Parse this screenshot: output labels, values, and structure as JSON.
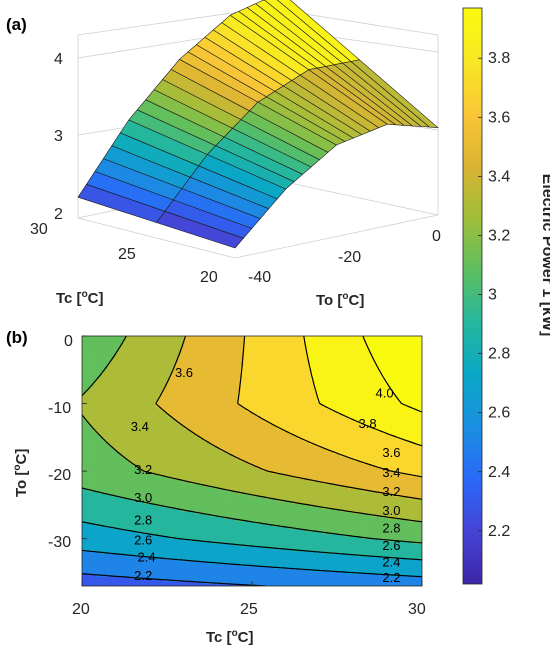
{
  "chart_data": [
    {
      "panel": "(a)",
      "type": "surface",
      "xlabel": "Tc [",
      "xlabel_unit": "C]",
      "ylabel": "To [",
      "ylabel_unit": "C]",
      "degree_symbol": "o",
      "xlim": [
        20,
        30
      ],
      "ylim": [
        -40,
        0
      ],
      "zlim": [
        2,
        4.2
      ],
      "x_ticks": [
        20,
        25,
        30
      ],
      "y_ticks": [
        -40,
        -20,
        0
      ],
      "z_ticks": [
        2,
        3,
        4
      ],
      "grid": true,
      "colormap": "parula",
      "surface_values": {
        "Tc": [
          20,
          30
        ],
        "To": [
          -40,
          -30,
          -20,
          -10,
          0
        ],
        "z_at_Tc20": [
          2.12,
          2.7,
          3.1,
          3.22,
          3.05
        ],
        "z_at_Tc30": [
          2.25,
          3.05,
          3.65,
          4.05,
          4.2
        ]
      }
    },
    {
      "panel": "(b)",
      "type": "contour",
      "xlabel": "Tc [",
      "xlabel_unit": "C]",
      "ylabel": "To [",
      "ylabel_unit": "C]",
      "degree_symbol": "o",
      "xlim": [
        20,
        30
      ],
      "ylim": [
        -37,
        0
      ],
      "x_ticks": [
        20,
        25,
        30
      ],
      "y_ticks": [
        0,
        -10,
        -20,
        -30
      ],
      "levels": [
        2.2,
        2.4,
        2.6,
        2.8,
        3.0,
        3.2,
        3.4,
        3.6,
        3.8,
        4.0
      ],
      "contour_labels": [
        {
          "text": "2.2",
          "tc": 21.8,
          "to": -35.5
        },
        {
          "text": "2.2",
          "tc": 29.1,
          "to": -35.8
        },
        {
          "text": "2.4",
          "tc": 21.9,
          "to": -32.8
        },
        {
          "text": "2.4",
          "tc": 29.1,
          "to": -33.5
        },
        {
          "text": "2.6",
          "tc": 21.8,
          "to": -30.3
        },
        {
          "text": "2.6",
          "tc": 29.1,
          "to": -31.1
        },
        {
          "text": "2.8",
          "tc": 21.8,
          "to": -27.3
        },
        {
          "text": "2.8",
          "tc": 29.1,
          "to": -28.5
        },
        {
          "text": "3.0",
          "tc": 21.8,
          "to": -24.0
        },
        {
          "text": "3.0",
          "tc": 29.1,
          "to": -25.9
        },
        {
          "text": "3.2",
          "tc": 21.8,
          "to": -19.8
        },
        {
          "text": "3.2",
          "tc": 29.1,
          "to": -23.1
        },
        {
          "text": "3.4",
          "tc": 21.7,
          "to": -13.5
        },
        {
          "text": "3.4",
          "tc": 29.1,
          "to": -20.3
        },
        {
          "text": "3.6",
          "tc": 23.0,
          "to": -5.5
        },
        {
          "text": "3.6",
          "tc": 29.1,
          "to": -17.3
        },
        {
          "text": "3.8",
          "tc": 28.4,
          "to": -13.0
        },
        {
          "text": "4.0",
          "tc": 28.9,
          "to": -8.5
        }
      ]
    },
    {
      "type": "colorbar",
      "label": "Electric Power 1 [kW]",
      "ticks": [
        "2.2",
        "2.4",
        "2.6",
        "2.8",
        "3",
        "3.2",
        "3.4",
        "3.6",
        "3.8"
      ],
      "range": [
        2.02,
        3.97
      ],
      "colormap": "parula"
    }
  ],
  "colors": {
    "parula": [
      "#3e26a8",
      "#4544d6",
      "#2a69f8",
      "#1a8fe0",
      "#0aa8c6",
      "#26b79d",
      "#5cbf5f",
      "#a0be3a",
      "#dbb432",
      "#fbc736",
      "#f8e823",
      "#f9fb0e"
    ],
    "mesh_line": "#1a1a1a",
    "contour_line": "#000000",
    "axis": "#262626"
  }
}
